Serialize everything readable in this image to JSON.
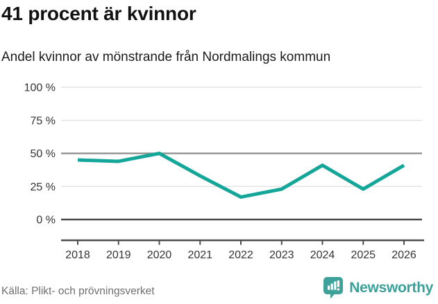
{
  "header": {
    "title": "41 procent är kvinnor",
    "subtitle": "Andel kvinnor av mönstrande från Nordmalings kommun"
  },
  "chart_data": {
    "type": "line",
    "title": "41 procent är kvinnor",
    "subtitle": "Andel kvinnor av mönstrande från Nordmalings kommun",
    "categories": [
      "2018",
      "2019",
      "2020",
      "2021",
      "2022",
      "2023",
      "2024",
      "2025",
      "2026"
    ],
    "series": [
      {
        "name": "Andel kvinnor av mönstrande",
        "values": [
          45,
          44,
          50,
          33,
          17,
          23,
          41,
          23,
          41
        ]
      }
    ],
    "xlabel": "",
    "ylabel": "",
    "ylim": [
      0,
      100
    ],
    "yticks": [
      0,
      25,
      50,
      75,
      100
    ],
    "ytick_labels": [
      "0 %",
      "25 %",
      "50 %",
      "75 %",
      "100 %"
    ],
    "ytick_emphasis": [
      "dark",
      "light",
      "mid",
      "light",
      "light"
    ],
    "grid": true,
    "legend_position": "none",
    "colors": {
      "line": "#15a69a",
      "grid_light": "#e4e4e4",
      "grid_mid": "#8a8a8a",
      "grid_dark": "#4a4a4a",
      "axis": "#4d4d4d",
      "tick_text": "#333333"
    }
  },
  "footer": {
    "source": "Källa: Plikt- och prövningsverket",
    "brand": "Newsworthy",
    "brand_color": "#3aa19a"
  }
}
